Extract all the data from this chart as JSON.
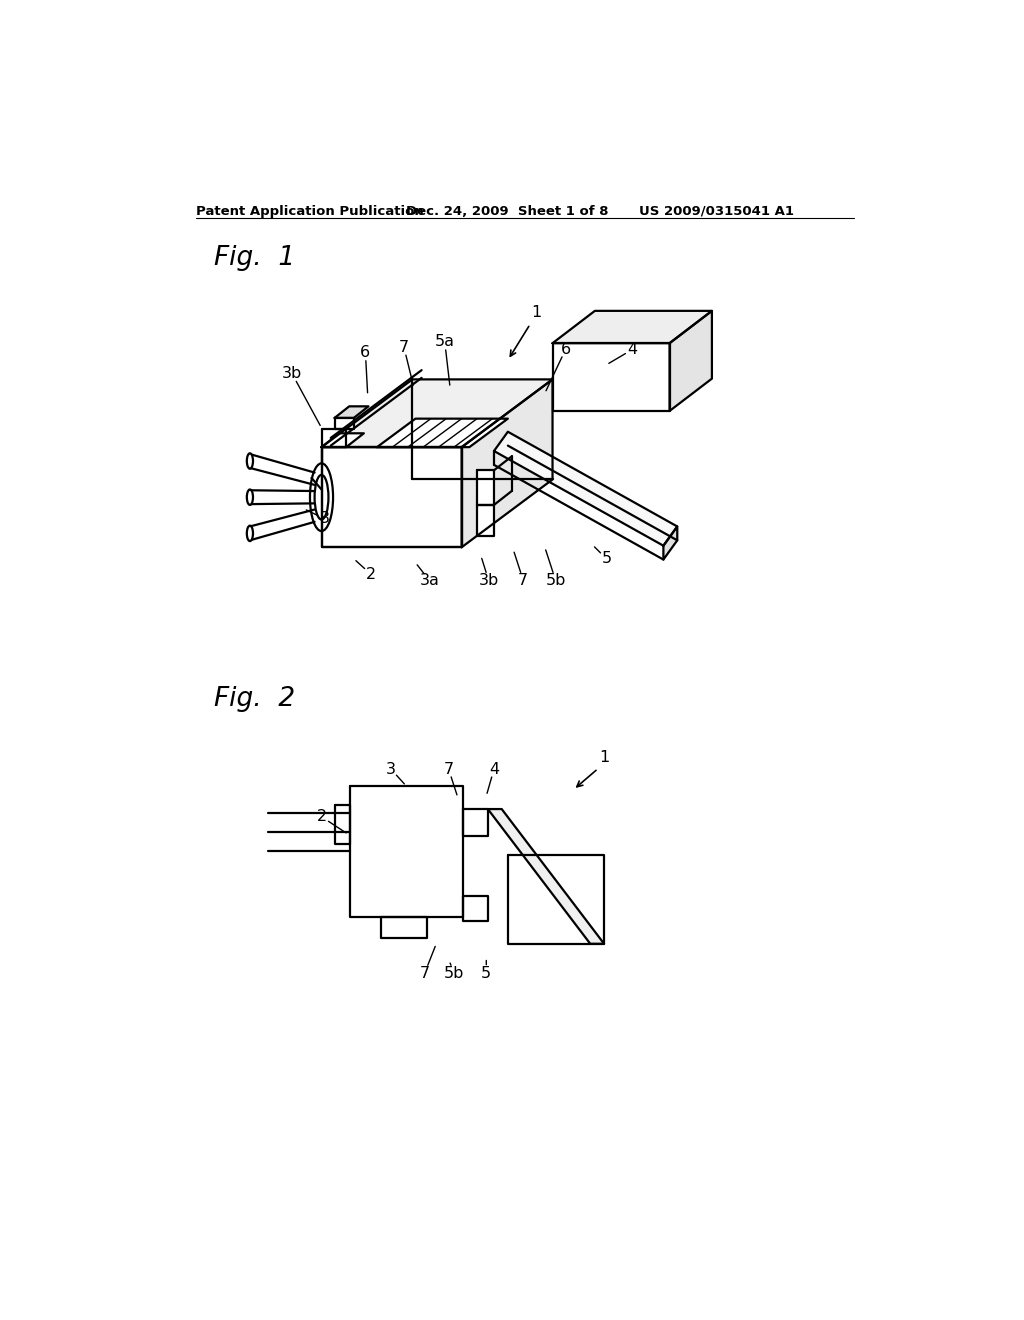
{
  "bg_color": "#ffffff",
  "header_left": "Patent Application Publication",
  "header_center": "Dec. 24, 2009  Sheet 1 of 8",
  "header_right": "US 2009/0315041 A1",
  "fig1_label": "Fig.  1",
  "fig2_label": "Fig.  2"
}
